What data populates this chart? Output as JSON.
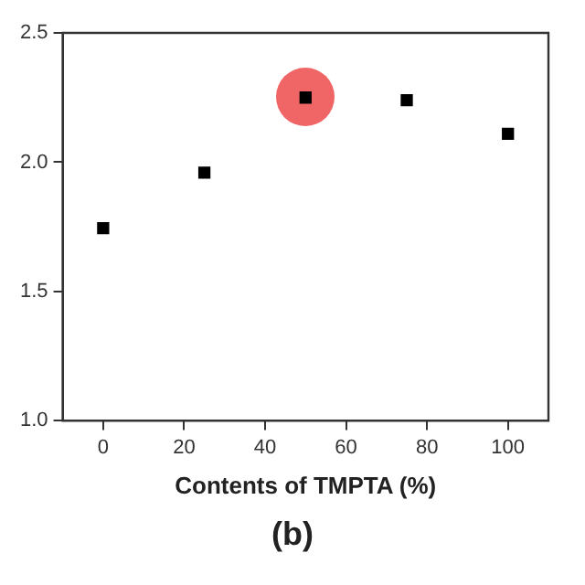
{
  "chart_data": {
    "type": "scatter",
    "xlabel": "Contents of TMPTA (%)",
    "annotations": [
      "(b)"
    ],
    "x": [
      0,
      25,
      50,
      75,
      100
    ],
    "series": [
      {
        "color": "#000000",
        "values": [
          1.745,
          1.96,
          2.25,
          2.24,
          2.11
        ]
      }
    ],
    "xlim": [
      -10,
      110
    ],
    "xticks": [
      0,
      20,
      40,
      60,
      80,
      100
    ],
    "ylim": [
      1.0,
      2.5
    ],
    "yticks": [
      {
        "value": 1.0,
        "label": "1.0"
      },
      {
        "value": 1.5,
        "label": "1.5"
      },
      {
        "value": 2.0,
        "label": "2.0"
      },
      {
        "value": 2.5,
        "label": "2.5"
      }
    ],
    "marker": "square",
    "legend": false
  }
}
